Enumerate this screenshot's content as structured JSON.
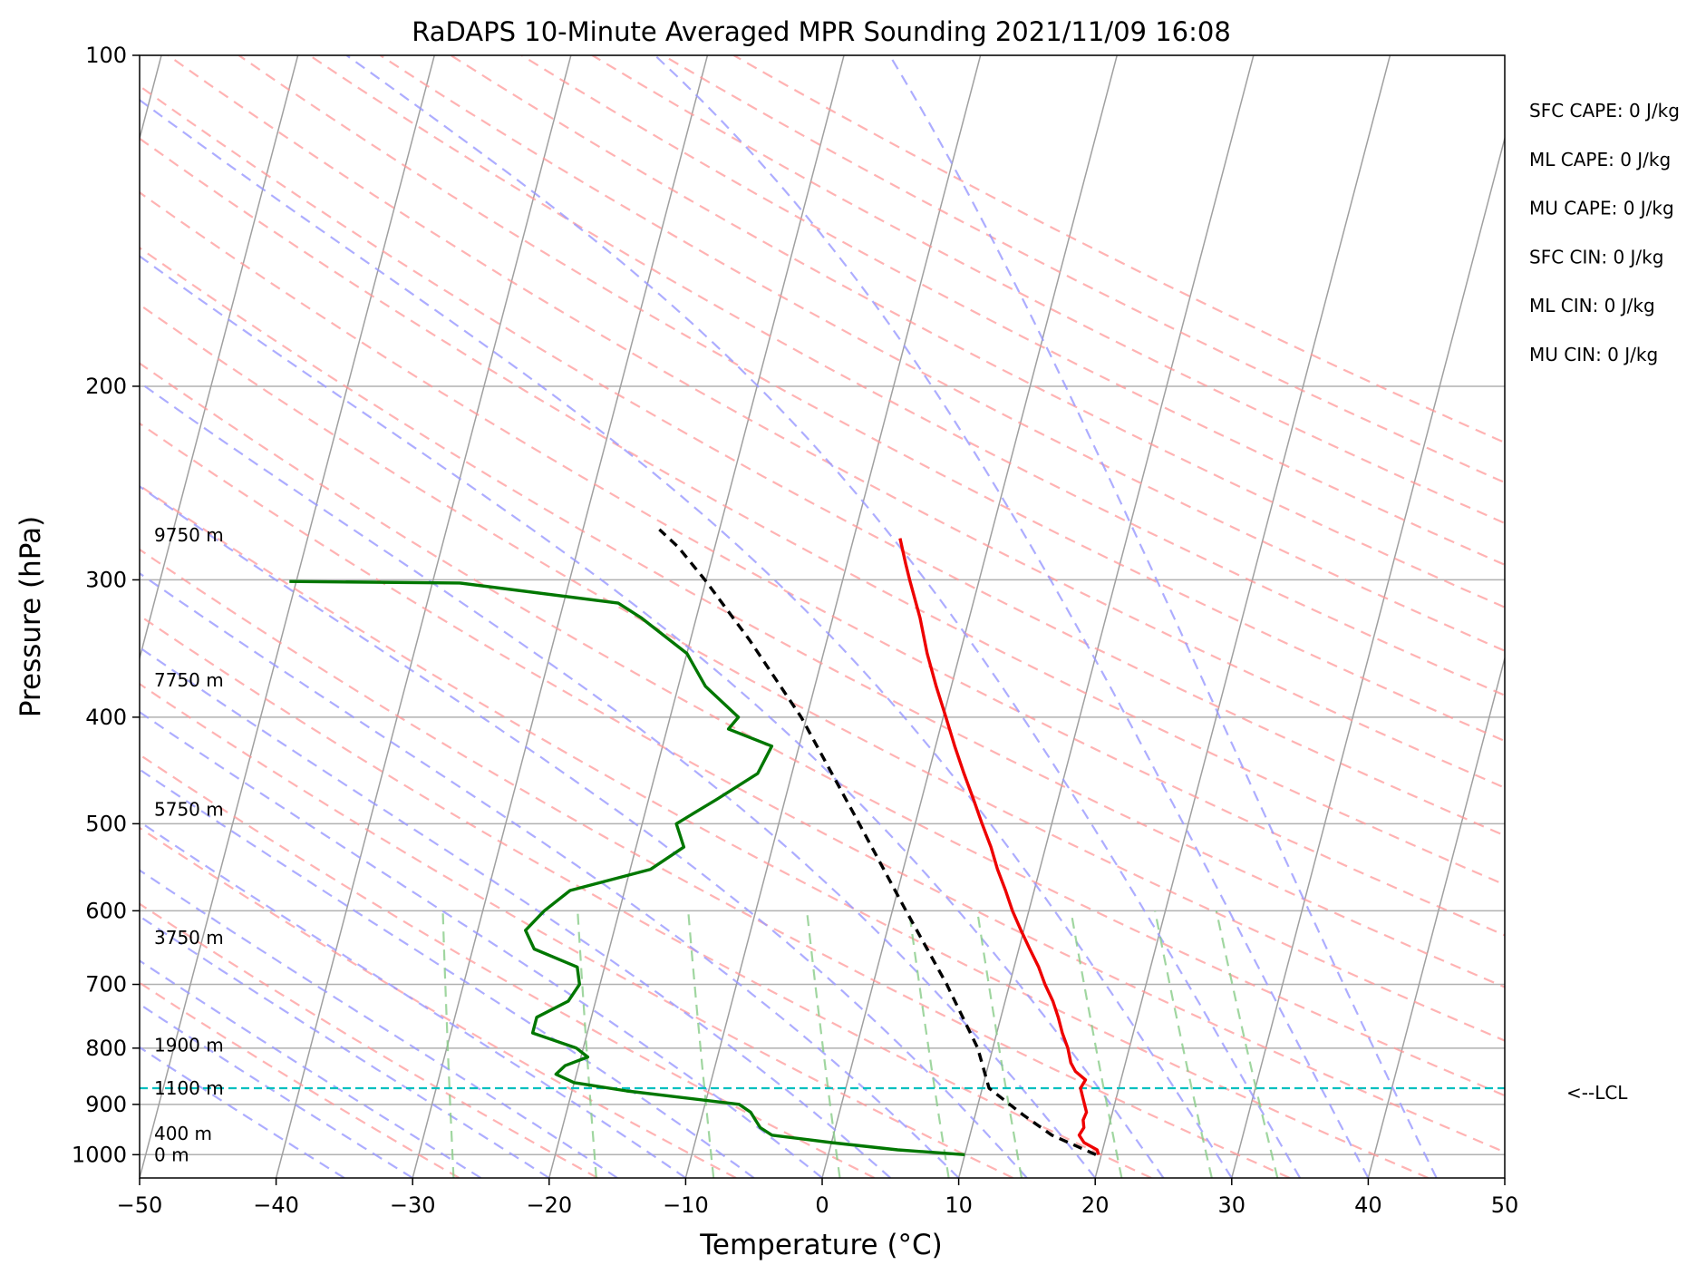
{
  "chart_data": {
    "type": "line",
    "subtype": "skew-T log-P sounding",
    "title": "RaDAPS 10-Minute Averaged MPR Sounding 2021/11/09 16:08",
    "xlabel": "Temperature (°C)",
    "ylabel": "Pressure (hPa)",
    "xlim": [
      -50,
      50
    ],
    "ylim": [
      1050,
      100
    ],
    "y_scale": "log",
    "grid": true,
    "x_ticks": [
      -50,
      -40,
      -30,
      -20,
      -10,
      0,
      10,
      20,
      30,
      40,
      50
    ],
    "x_tick_labels": [
      "−50",
      "−40",
      "−30",
      "−20",
      "−10",
      "0",
      "10",
      "20",
      "30",
      "40",
      "50"
    ],
    "y_ticks": [
      1000,
      900,
      800,
      700,
      600,
      500,
      400,
      300,
      200,
      100
    ],
    "y_tick_labels": [
      "1000",
      "900",
      "800",
      "700",
      "600",
      "500",
      "400",
      "300",
      "200",
      "100"
    ],
    "isotherms_every_c": 10,
    "background_lines": {
      "dry_adiabats_color": "#ff9999",
      "moist_adiabats_color": "#9999ff",
      "mixing_ratio_color": "#88cc88",
      "isotherm_color": "#a0a0a0"
    },
    "series": [
      {
        "color": "#ee0000",
        "p": [
          1000,
          990,
          975,
          960,
          945,
          930,
          915,
          900,
          885,
          870,
          855,
          840,
          825,
          800,
          775,
          750,
          725,
          700,
          675,
          650,
          625,
          600,
          575,
          550,
          525,
          500,
          475,
          450,
          425,
          400,
          375,
          350,
          325,
          300,
          290,
          275
        ],
        "t": [
          19.8,
          19.6,
          18.5,
          18.0,
          18.2,
          18.0,
          18.1,
          17.8,
          17.5,
          17.2,
          17.4,
          16.5,
          16.0,
          15.5,
          14.8,
          14.2,
          13.5,
          12.6,
          11.8,
          10.8,
          9.8,
          8.8,
          7.9,
          6.9,
          6.0,
          4.9,
          3.8,
          2.6,
          1.4,
          0.2,
          -1.1,
          -2.4,
          -3.6,
          -5.1,
          -5.7,
          -6.6
        ]
      },
      {
        "color": "#007700",
        "p": [
          1000,
          990,
          975,
          960,
          945,
          930,
          915,
          900,
          875,
          860,
          845,
          830,
          815,
          800,
          775,
          750,
          725,
          700,
          675,
          650,
          625,
          600,
          575,
          550,
          525,
          500,
          475,
          450,
          425,
          410,
          400,
          375,
          350,
          325,
          315,
          302,
          301
        ],
        "t": [
          10.0,
          5.0,
          0.0,
          -4.5,
          -5.5,
          -6.0,
          -6.5,
          -7.5,
          -16.0,
          -20.0,
          -21.5,
          -21.0,
          -19.5,
          -20.5,
          -24.0,
          -24.0,
          -22.0,
          -21.5,
          -22.0,
          -25.5,
          -26.5,
          -25.5,
          -24.0,
          -18.5,
          -16.5,
          -17.5,
          -15.0,
          -12.5,
          -12.0,
          -15.5,
          -15.0,
          -18.0,
          -20.0,
          -24.0,
          -26.0,
          -38.0,
          -50.5
        ]
      },
      {
        "color": "#000000",
        "dashed": true,
        "p": [
          1000,
          960,
          920,
          870,
          800,
          700,
          600,
          500,
          400,
          340,
          300,
          280,
          270
        ],
        "t": [
          19.6,
          16.0,
          13.5,
          10.5,
          8.9,
          5.4,
          1.0,
          -4.1,
          -10.4,
          -15.7,
          -20.1,
          -22.7,
          -24.4
        ]
      }
    ],
    "lcl": {
      "pressure_hpa": 870,
      "label": "<--LCL",
      "color": "#00bfbf"
    },
    "height_labels": [
      {
        "p": 1000,
        "label": "0 m"
      },
      {
        "p": 957,
        "label": "400 m"
      },
      {
        "p": 870,
        "label": "1100 m"
      },
      {
        "p": 795,
        "label": "1900 m"
      },
      {
        "p": 635,
        "label": "3750 m"
      },
      {
        "p": 485,
        "label": "5750 m"
      },
      {
        "p": 370,
        "label": "7750 m"
      },
      {
        "p": 273,
        "label": "9750 m"
      }
    ],
    "indices": [
      "SFC CAPE: 0 J/kg",
      "ML CAPE: 0 J/kg",
      "MU CAPE: 0 J/kg",
      "SFC CIN: 0 J/kg",
      "ML CIN: 0 J/kg",
      "MU CIN: 0 J/kg"
    ]
  }
}
